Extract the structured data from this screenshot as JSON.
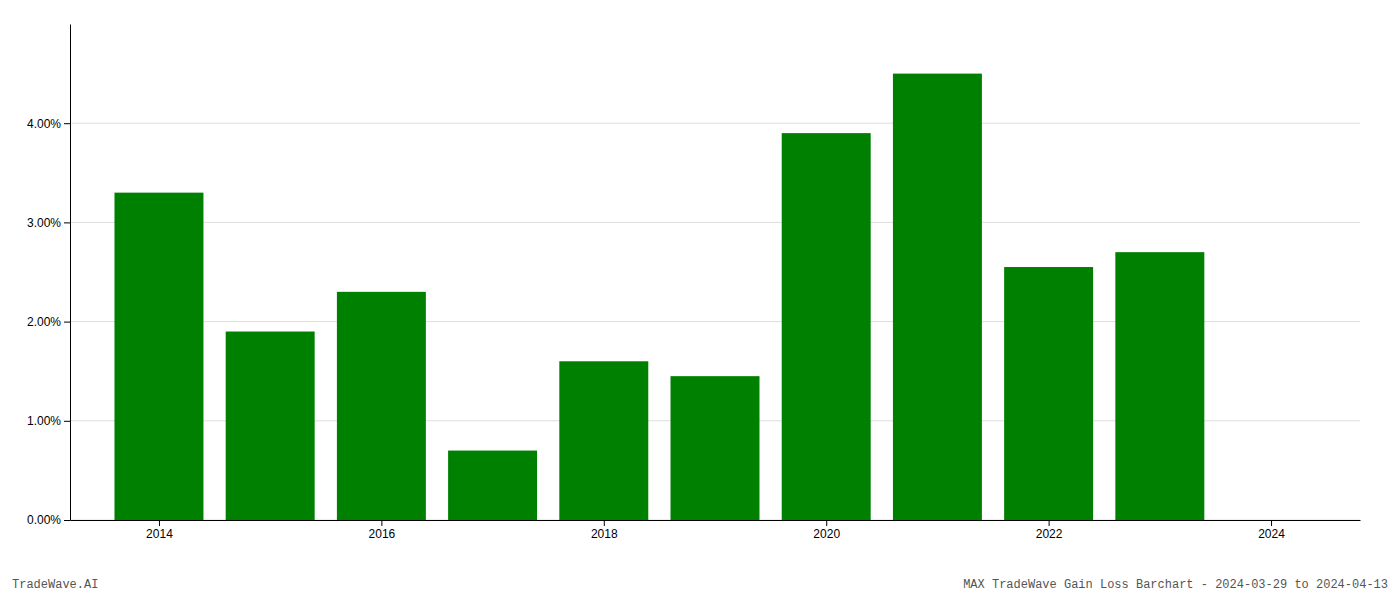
{
  "chart_data": {
    "type": "bar",
    "x": [
      2014,
      2015,
      2016,
      2017,
      2018,
      2019,
      2020,
      2021,
      2022,
      2023
    ],
    "values": [
      0.033,
      0.019,
      0.023,
      0.007,
      0.016,
      0.0145,
      0.039,
      0.045,
      0.0255,
      0.027
    ],
    "color": "#008000",
    "xlim": [
      2013.2,
      2024.8
    ],
    "xticks": [
      2014,
      2016,
      2018,
      2020,
      2022,
      2024
    ],
    "ylim": [
      0,
      0.05
    ],
    "yticks": [
      {
        "value": 0.0,
        "label": "0.00%"
      },
      {
        "value": 0.01,
        "label": "1.00%"
      },
      {
        "value": 0.02,
        "label": "2.00%"
      },
      {
        "value": 0.03,
        "label": "3.00%"
      },
      {
        "value": 0.04,
        "label": "4.00%"
      }
    ],
    "grid": true,
    "annotations": [
      "TradeWave.AI",
      "MAX TradeWave Gain Loss Barchart - 2024-03-29 to 2024-04-13"
    ]
  }
}
